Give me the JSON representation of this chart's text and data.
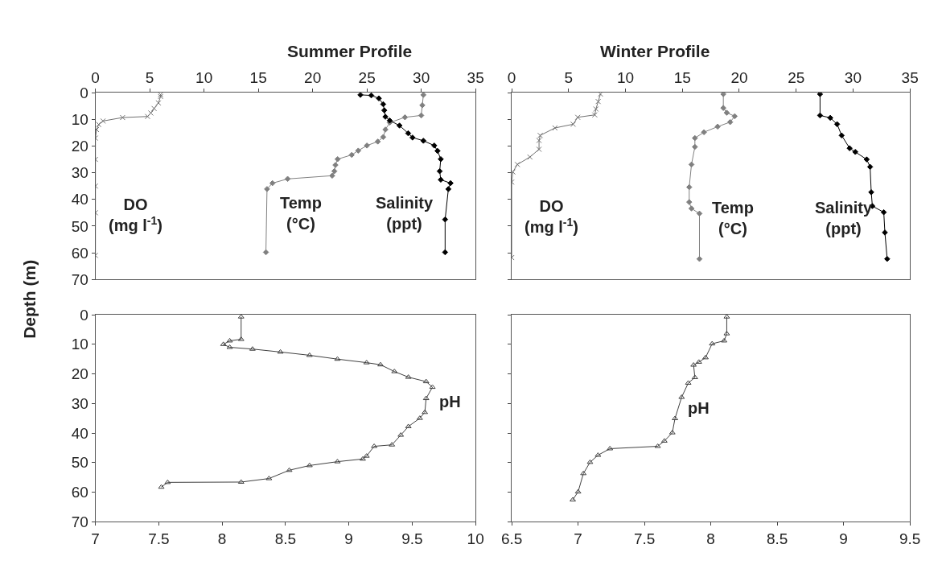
{
  "chart_data": [
    {
      "type": "line",
      "title": "Summer Profile",
      "ylabel": "Depth (m)",
      "xlim": [
        0,
        35
      ],
      "xticks": [
        0,
        5,
        10,
        15,
        20,
        25,
        30,
        35
      ],
      "ylim": [
        70,
        0
      ],
      "yticks": [
        0,
        10,
        20,
        30,
        40,
        50,
        60,
        70
      ],
      "legend": false,
      "series": [
        {
          "name": "DO (mg l$^{-1}$)",
          "color": "#707070",
          "marker": "cross",
          "x": [
            6.0,
            6.0,
            5.8,
            5.4,
            5.1,
            4.8,
            2.5,
            0.7,
            0.3,
            0.1,
            0,
            0,
            0,
            0,
            0
          ],
          "values": [
            0.7,
            1.4,
            3.8,
            5.9,
            7.6,
            8.9,
            9.3,
            10.6,
            11.9,
            13.8,
            17,
            25,
            35,
            45,
            61
          ]
        },
        {
          "name": "Temp (°C)",
          "color": "#808080",
          "marker": "diamond",
          "x": [
            30.2,
            30.1,
            30.0,
            28.5,
            27.1,
            26.7,
            26.5,
            26.0,
            25.0,
            24.2,
            23.6,
            22.3,
            22.1,
            22.0,
            21.8,
            17.7,
            16.3,
            15.8,
            15.7
          ],
          "values": [
            0.8,
            4.7,
            8.5,
            9.2,
            11.2,
            13.8,
            16.6,
            18.3,
            19.8,
            21.7,
            23.3,
            24.9,
            27.1,
            29.4,
            31.1,
            32.3,
            33.9,
            36.1,
            59.8
          ]
        },
        {
          "name": "Salinity (ppt)",
          "color": "#000000",
          "marker": "diamond",
          "x": [
            24.4,
            25.4,
            26.1,
            26.5,
            26.6,
            26.7,
            27.1,
            28.0,
            28.8,
            29.2,
            30.2,
            31.2,
            31.5,
            31.8,
            31.7,
            31.8,
            32.7,
            32.5,
            32.2,
            32.2
          ],
          "values": [
            0.8,
            1.0,
            2.1,
            4.3,
            6.6,
            9.0,
            10.4,
            12.3,
            15.2,
            16.8,
            18.0,
            19.8,
            21.8,
            24.9,
            29.4,
            32.6,
            33.9,
            36.1,
            47.5,
            59.8
          ]
        }
      ]
    },
    {
      "type": "line",
      "title": "Winter Profile",
      "xlim": [
        0,
        35
      ],
      "xticks": [
        0,
        5,
        10,
        15,
        20,
        25,
        30,
        35
      ],
      "ylim": [
        70,
        0
      ],
      "yticks": [
        0,
        10,
        20,
        30,
        40,
        50,
        60,
        70
      ],
      "tick_labels": "x",
      "legend": false,
      "series": [
        {
          "name": "DO (mg l$^{-1}$)",
          "color": "#707070",
          "marker": "cross",
          "x": [
            7.8,
            7.6,
            7.4,
            7.3,
            5.8,
            5.4,
            3.8,
            2.5,
            2.4,
            2.4,
            1.6,
            0.5,
            0.1,
            0,
            0
          ],
          "values": [
            0.5,
            3.3,
            6.1,
            8.3,
            9.2,
            11.8,
            13.2,
            16.0,
            17.9,
            21.2,
            24.1,
            26.9,
            29.7,
            33.5,
            61.8
          ]
        },
        {
          "name": "Temp (°C)",
          "color": "#808080",
          "marker": "diamond",
          "x": [
            18.6,
            18.6,
            18.9,
            19.6,
            19.2,
            18.1,
            16.9,
            16.1,
            16.1,
            15.8,
            15.6,
            15.6,
            15.8,
            16.5,
            16.5
          ],
          "values": [
            0.5,
            5.7,
            7.5,
            8.8,
            11.0,
            12.7,
            14.8,
            17.0,
            20.3,
            26.9,
            35.4,
            41.0,
            43.4,
            45.3,
            62.3
          ]
        },
        {
          "name": "Salinity (ppt)",
          "color": "#000000",
          "marker": "diamond",
          "x": [
            27.1,
            27.1,
            28.0,
            28.6,
            29.0,
            29.7,
            30.2,
            31.2,
            31.5,
            31.6,
            31.7,
            32.7,
            32.8,
            33.0
          ],
          "values": [
            0.5,
            8.5,
            9.4,
            11.8,
            16.0,
            20.8,
            22.2,
            25.0,
            27.8,
            37.3,
            42.5,
            44.8,
            52.4,
            62.3
          ]
        }
      ]
    },
    {
      "type": "line",
      "xlim": [
        7,
        10
      ],
      "xticks": [
        7,
        7.5,
        8,
        8.5,
        9,
        9.5,
        10
      ],
      "ylim": [
        70,
        0
      ],
      "yticks": [
        0,
        10,
        20,
        30,
        40,
        50,
        60,
        70
      ],
      "legend": false,
      "series": [
        {
          "name": "pH",
          "color": "#404040",
          "marker": "triangle",
          "x": [
            8.15,
            8.15,
            8.06,
            8.01,
            8.06,
            8.24,
            8.46,
            8.69,
            8.91,
            9.14,
            9.25,
            9.36,
            9.47,
            9.61,
            9.66,
            9.61,
            9.6,
            9.56,
            9.47,
            9.41,
            9.34,
            9.2,
            9.14,
            9.11,
            8.91,
            8.69,
            8.53,
            8.37,
            8.15,
            7.57,
            7.52
          ],
          "values": [
            0.7,
            8.3,
            8.8,
            10.0,
            11.0,
            11.6,
            12.6,
            13.7,
            15.0,
            16.2,
            16.9,
            19.2,
            21.1,
            22.6,
            24.5,
            28.3,
            33.0,
            35.0,
            37.8,
            40.7,
            44.0,
            44.5,
            47.8,
            48.8,
            49.7,
            51.0,
            52.6,
            55.4,
            56.6,
            56.7,
            58.3
          ]
        }
      ]
    },
    {
      "type": "line",
      "xlim": [
        6.5,
        9.5
      ],
      "xticks": [
        6.5,
        7,
        7.5,
        8,
        8.5,
        9,
        9.5
      ],
      "ylim": [
        70,
        0
      ],
      "yticks": [
        0,
        10,
        20,
        30,
        40,
        50,
        60,
        70
      ],
      "tick_labels": "x",
      "legend": false,
      "series": [
        {
          "name": "pH",
          "color": "#404040",
          "marker": "triangle",
          "x": [
            8.12,
            8.12,
            8.1,
            8.01,
            7.96,
            7.91,
            7.87,
            7.88,
            7.83,
            7.78,
            7.73,
            7.71,
            7.65,
            7.6,
            7.24,
            7.15,
            7.09,
            7.04,
            7.0,
            6.96
          ],
          "values": [
            0.7,
            6.4,
            8.8,
            9.8,
            14.5,
            16.0,
            17.0,
            21.2,
            23.1,
            27.9,
            35.1,
            39.9,
            42.7,
            44.5,
            45.3,
            47.5,
            49.9,
            53.7,
            59.9,
            62.6
          ]
        }
      ]
    }
  ]
}
